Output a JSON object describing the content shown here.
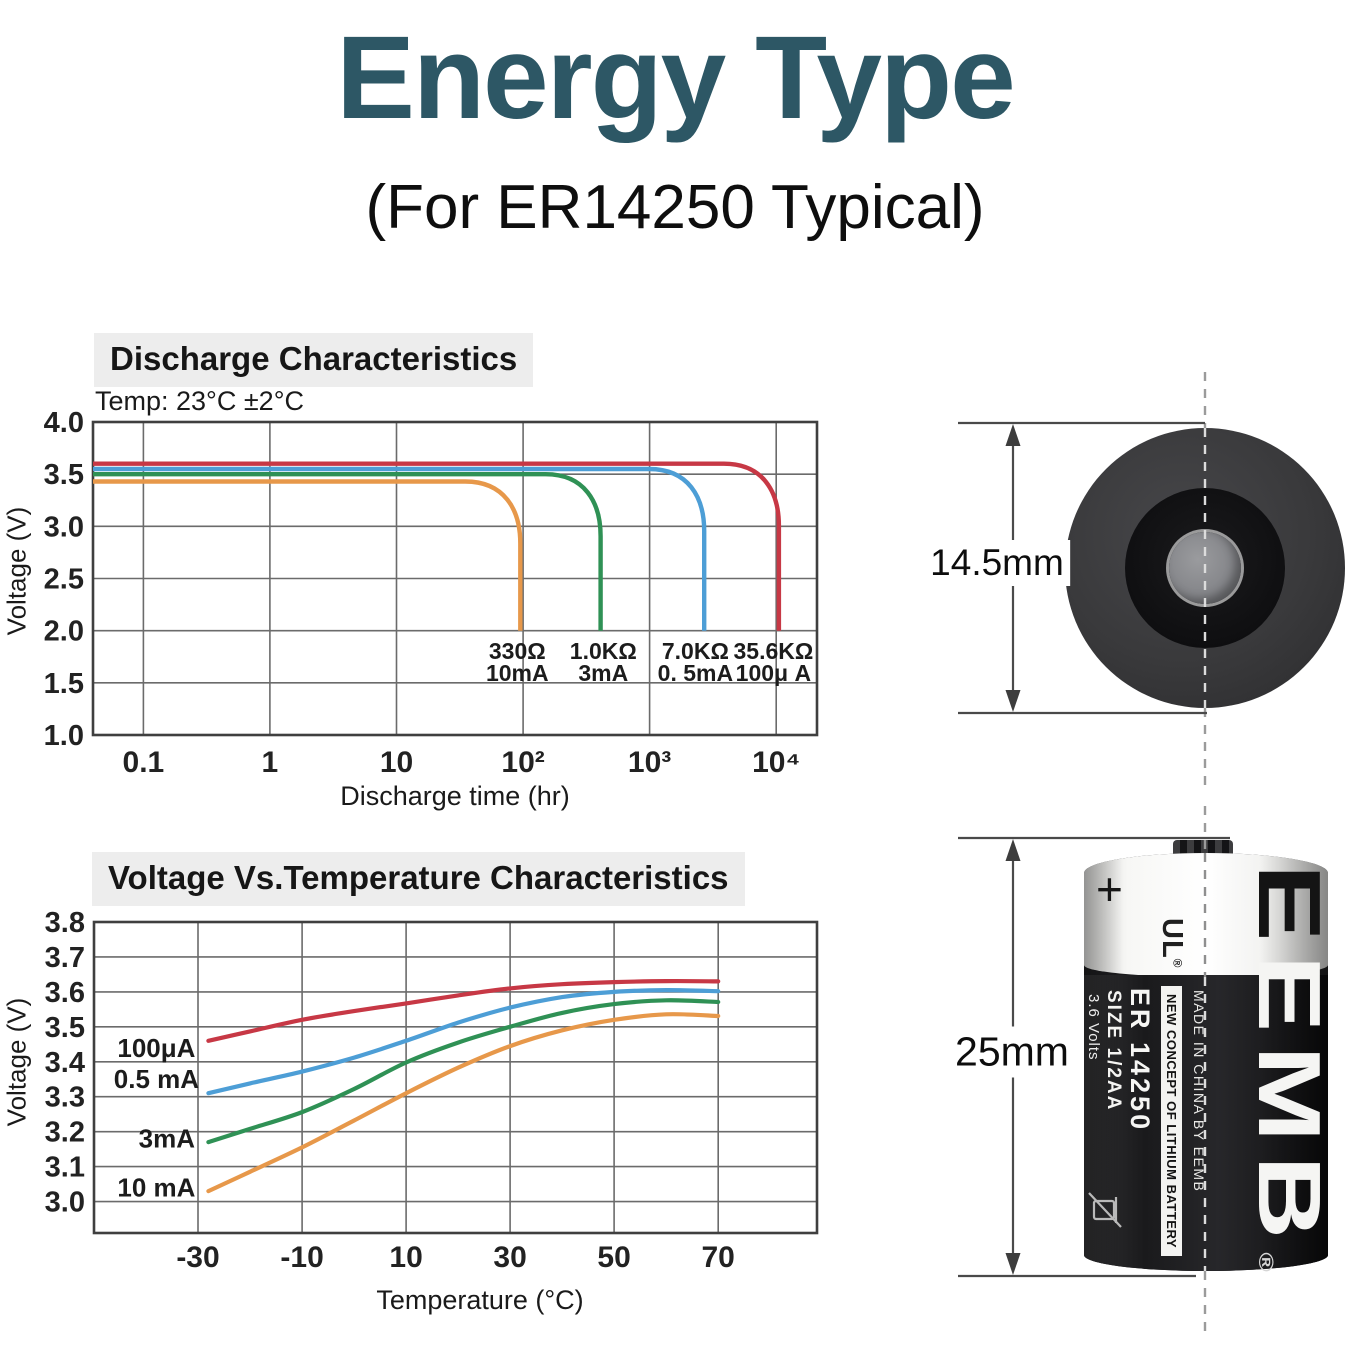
{
  "page": {
    "title": "Energy Type",
    "subtitle": "(For ER14250 Typical)"
  },
  "discharge": {
    "heading": "Discharge Characteristics",
    "condition": "Temp: 23°C ±2°C",
    "xlabel": "Discharge time (hr)",
    "ylabel": "Voltage (V)"
  },
  "temperature": {
    "heading": "Voltage Vs.Temperature Characteristics",
    "xlabel": "Temperature (°C)",
    "ylabel": "Voltage (V)"
  },
  "battery": {
    "top_view": {
      "diameter": "14.5mm"
    },
    "side_view": {
      "height": "25mm",
      "polarity": "+",
      "cert": "UL",
      "reg": "®",
      "brand_first": "E",
      "brand_rest": "EMB",
      "model": "ER 14250",
      "size": "SIZE 1/2AA",
      "volts": "3.6 Volts",
      "concept": "NEW CONCEPT OF LITHIUM BATTERY",
      "origin": "MADE IN CHINA BY EEMB"
    }
  },
  "chart_data": [
    {
      "type": "line",
      "title": "Discharge Characteristics",
      "condition": "Temp: 23°C ±2°C",
      "xlabel": "Discharge time (hr)",
      "ylabel": "Voltage (V)",
      "x_scale": "log",
      "grid": true,
      "xlim": [
        0.04,
        21000
      ],
      "ylim": [
        1.0,
        4.0
      ],
      "x_ticks": {
        "values": [
          0.1,
          1,
          10,
          100,
          1000,
          10000
        ],
        "labels": [
          "0.1",
          "1",
          "10",
          "10²",
          "10³",
          "10⁴"
        ]
      },
      "y_ticks": [
        4.0,
        3.5,
        3.0,
        2.5,
        2.0,
        1.5,
        1.0
      ],
      "series": [
        {
          "name": "330Ω 10mA",
          "color": "#e7984a",
          "plateau_v": 3.43,
          "cutoff_v": 2.0,
          "drop_hr": 95
        },
        {
          "name": "1.0KΩ 3mA",
          "color": "#2f9155",
          "plateau_v": 3.5,
          "cutoff_v": 2.0,
          "drop_hr": 410
        },
        {
          "name": "7.0KΩ 0.5mA",
          "color": "#4d9ed6",
          "plateau_v": 3.55,
          "cutoff_v": 2.0,
          "drop_hr": 2700
        },
        {
          "name": "35.6KΩ 100μA",
          "color": "#c73845",
          "plateau_v": 3.6,
          "cutoff_v": 2.0,
          "drop_hr": 10500
        }
      ],
      "annotations": [
        {
          "line1": "330Ω",
          "line2": "10mA",
          "at_hr": 90
        },
        {
          "line1": "1.0KΩ",
          "line2": "3mA",
          "at_hr": 430
        },
        {
          "line1": "7.0KΩ",
          "line2": "0. 5mA",
          "at_hr": 2300
        },
        {
          "line1": "35.6KΩ",
          "line2": "100μ A",
          "at_hr": 9500
        }
      ]
    },
    {
      "type": "line",
      "title": "Voltage Vs.Temperature Characteristics",
      "xlabel": "Temperature (°C)",
      "ylabel": "Voltage (V)",
      "grid": true,
      "xlim": [
        -50,
        89
      ],
      "ylim": [
        2.91,
        3.8
      ],
      "x_ticks": [
        -30,
        -10,
        10,
        30,
        50,
        70
      ],
      "y_ticks": [
        3.8,
        3.7,
        3.6,
        3.5,
        3.4,
        3.3,
        3.2,
        3.1,
        3.0
      ],
      "series": [
        {
          "name": "100μA",
          "color": "#c73845",
          "label_pos": [
            -38,
            3.44
          ],
          "points": [
            [
              -28,
              3.46
            ],
            [
              -20,
              3.487
            ],
            [
              -10,
              3.52
            ],
            [
              0,
              3.545
            ],
            [
              10,
              3.567
            ],
            [
              20,
              3.59
            ],
            [
              30,
              3.61
            ],
            [
              40,
              3.622
            ],
            [
              50,
              3.628
            ],
            [
              60,
              3.631
            ],
            [
              70,
              3.63
            ]
          ]
        },
        {
          "name": "0.5 mA",
          "color": "#4d9ed6",
          "label_pos": [
            -38,
            3.35
          ],
          "points": [
            [
              -28,
              3.31
            ],
            [
              -20,
              3.338
            ],
            [
              -10,
              3.372
            ],
            [
              0,
              3.412
            ],
            [
              10,
              3.46
            ],
            [
              20,
              3.512
            ],
            [
              30,
              3.555
            ],
            [
              40,
              3.585
            ],
            [
              50,
              3.6
            ],
            [
              60,
              3.605
            ],
            [
              70,
              3.602
            ]
          ]
        },
        {
          "name": "3mA",
          "color": "#2f9155",
          "label_pos": [
            -36,
            3.18
          ],
          "points": [
            [
              -28,
              3.17
            ],
            [
              -20,
              3.208
            ],
            [
              -10,
              3.256
            ],
            [
              0,
              3.322
            ],
            [
              10,
              3.398
            ],
            [
              20,
              3.455
            ],
            [
              30,
              3.5
            ],
            [
              40,
              3.54
            ],
            [
              50,
              3.565
            ],
            [
              60,
              3.576
            ],
            [
              70,
              3.571
            ]
          ]
        },
        {
          "name": "10 mA",
          "color": "#e7984a",
          "label_pos": [
            -38,
            3.04
          ],
          "points": [
            [
              -28,
              3.03
            ],
            [
              -20,
              3.085
            ],
            [
              -10,
              3.155
            ],
            [
              0,
              3.232
            ],
            [
              10,
              3.31
            ],
            [
              20,
              3.383
            ],
            [
              30,
              3.445
            ],
            [
              40,
              3.49
            ],
            [
              50,
              3.52
            ],
            [
              60,
              3.536
            ],
            [
              70,
              3.531
            ]
          ]
        }
      ]
    }
  ]
}
